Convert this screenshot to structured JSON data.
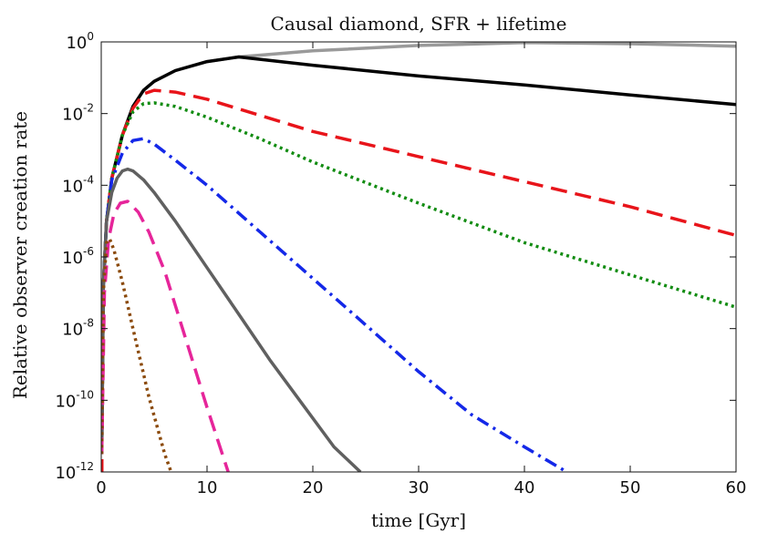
{
  "chart_data": {
    "type": "line",
    "title": "Causal diamond, SFR + lifetime",
    "xlabel": "time [Gyr]",
    "ylabel": "Relative observer creation rate",
    "xlim": [
      0,
      60
    ],
    "ylim_log10": [
      -12,
      0
    ],
    "yscale": "log",
    "grid": false,
    "x_ticks": [
      0,
      10,
      20,
      30,
      40,
      50,
      60
    ],
    "x_tick_labels": [
      "0",
      "10",
      "20",
      "30",
      "40",
      "50",
      "60"
    ],
    "y_ticks_log10": [
      -12,
      -10,
      -8,
      -6,
      -4,
      -2,
      0
    ],
    "y_tick_base": "10",
    "y_tick_exponents": [
      "-12",
      "-10",
      "-8",
      "-6",
      "-4",
      "-2",
      "0"
    ],
    "series": [
      {
        "name": "light gray solid",
        "color": "#9a9a9a",
        "dash": "solid",
        "x": [
          0.05,
          0.2,
          0.5,
          1,
          2,
          3,
          4,
          5,
          7,
          10,
          13,
          20,
          30,
          40,
          50,
          60
        ],
        "log10y": [
          -11.5,
          -6.8,
          -5.0,
          -3.8,
          -2.6,
          -1.8,
          -1.35,
          -1.1,
          -0.8,
          -0.55,
          -0.42,
          -0.25,
          -0.1,
          -0.02,
          -0.05,
          -0.12
        ]
      },
      {
        "name": "black solid",
        "color": "#000000",
        "dash": "solid",
        "x": [
          0.05,
          0.2,
          0.5,
          1,
          2,
          3,
          4,
          5,
          7,
          10,
          13,
          20,
          30,
          40,
          50,
          60
        ],
        "log10y": [
          -11.5,
          -6.8,
          -5.0,
          -3.8,
          -2.6,
          -1.8,
          -1.35,
          -1.1,
          -0.8,
          -0.55,
          -0.42,
          -0.65,
          -0.95,
          -1.2,
          -1.48,
          -1.75
        ]
      },
      {
        "name": "red dashed",
        "color": "#e8141a",
        "dash": "18,9",
        "x": [
          0.05,
          0.2,
          0.5,
          1,
          2,
          3,
          4,
          5,
          7,
          10,
          15,
          20,
          30,
          40,
          50,
          60
        ],
        "log10y": [
          -11.5,
          -6.8,
          -5.0,
          -3.8,
          -2.6,
          -1.85,
          -1.45,
          -1.35,
          -1.4,
          -1.6,
          -2.05,
          -2.5,
          -3.2,
          -3.9,
          -4.6,
          -5.4
        ]
      },
      {
        "name": "green dotted",
        "color": "#128c12",
        "dash": "3,4",
        "x": [
          0.05,
          0.2,
          0.5,
          1,
          2,
          3,
          4,
          5,
          7,
          10,
          15,
          20,
          30,
          40,
          50,
          60
        ],
        "log10y": [
          -11.5,
          -6.8,
          -5.0,
          -3.8,
          -2.6,
          -1.95,
          -1.72,
          -1.7,
          -1.8,
          -2.1,
          -2.7,
          -3.35,
          -4.5,
          -5.6,
          -6.5,
          -7.4
        ]
      },
      {
        "name": "blue dash-dot",
        "color": "#1428e8",
        "dash": "14,6,3,6",
        "x": [
          0.05,
          0.2,
          0.5,
          1,
          2,
          3,
          4,
          5,
          7,
          10,
          15,
          20,
          25,
          30,
          35,
          40,
          44
        ],
        "log10y": [
          -11.5,
          -6.8,
          -5.0,
          -3.85,
          -3.1,
          -2.75,
          -2.7,
          -2.85,
          -3.3,
          -4.0,
          -5.3,
          -6.6,
          -7.9,
          -9.2,
          -10.4,
          -11.3,
          -12
        ]
      },
      {
        "name": "dark gray solid",
        "color": "#606060",
        "dash": "solid",
        "x": [
          0.05,
          0.2,
          0.5,
          1,
          1.5,
          2,
          2.5,
          3,
          4,
          5,
          7,
          10,
          13,
          16,
          19,
          22,
          24.5
        ],
        "log10y": [
          -11.5,
          -6.8,
          -5.0,
          -4.2,
          -3.8,
          -3.6,
          -3.55,
          -3.6,
          -3.85,
          -4.2,
          -5.0,
          -6.3,
          -7.6,
          -8.9,
          -10.1,
          -11.3,
          -12
        ]
      },
      {
        "name": "magenta dashed",
        "color": "#e6259a",
        "dash": "18,9",
        "x": [
          0.05,
          0.3,
          0.7,
          1.2,
          1.8,
          2.5,
          3.5,
          4.5,
          6,
          8,
          10,
          12
        ],
        "log10y": [
          -11.5,
          -7.0,
          -5.5,
          -4.8,
          -4.5,
          -4.45,
          -4.75,
          -5.3,
          -6.4,
          -8.3,
          -10.2,
          -12
        ]
      },
      {
        "name": "brown dotted",
        "color": "#8b4a0b",
        "dash": "3,4",
        "x": [
          0.05,
          0.2,
          0.5,
          0.8,
          1.2,
          2,
          3,
          4.5,
          6,
          6.6
        ],
        "log10y": [
          -11.5,
          -7.0,
          -5.6,
          -5.5,
          -5.8,
          -6.7,
          -8.0,
          -9.9,
          -11.5,
          -12
        ]
      }
    ]
  }
}
